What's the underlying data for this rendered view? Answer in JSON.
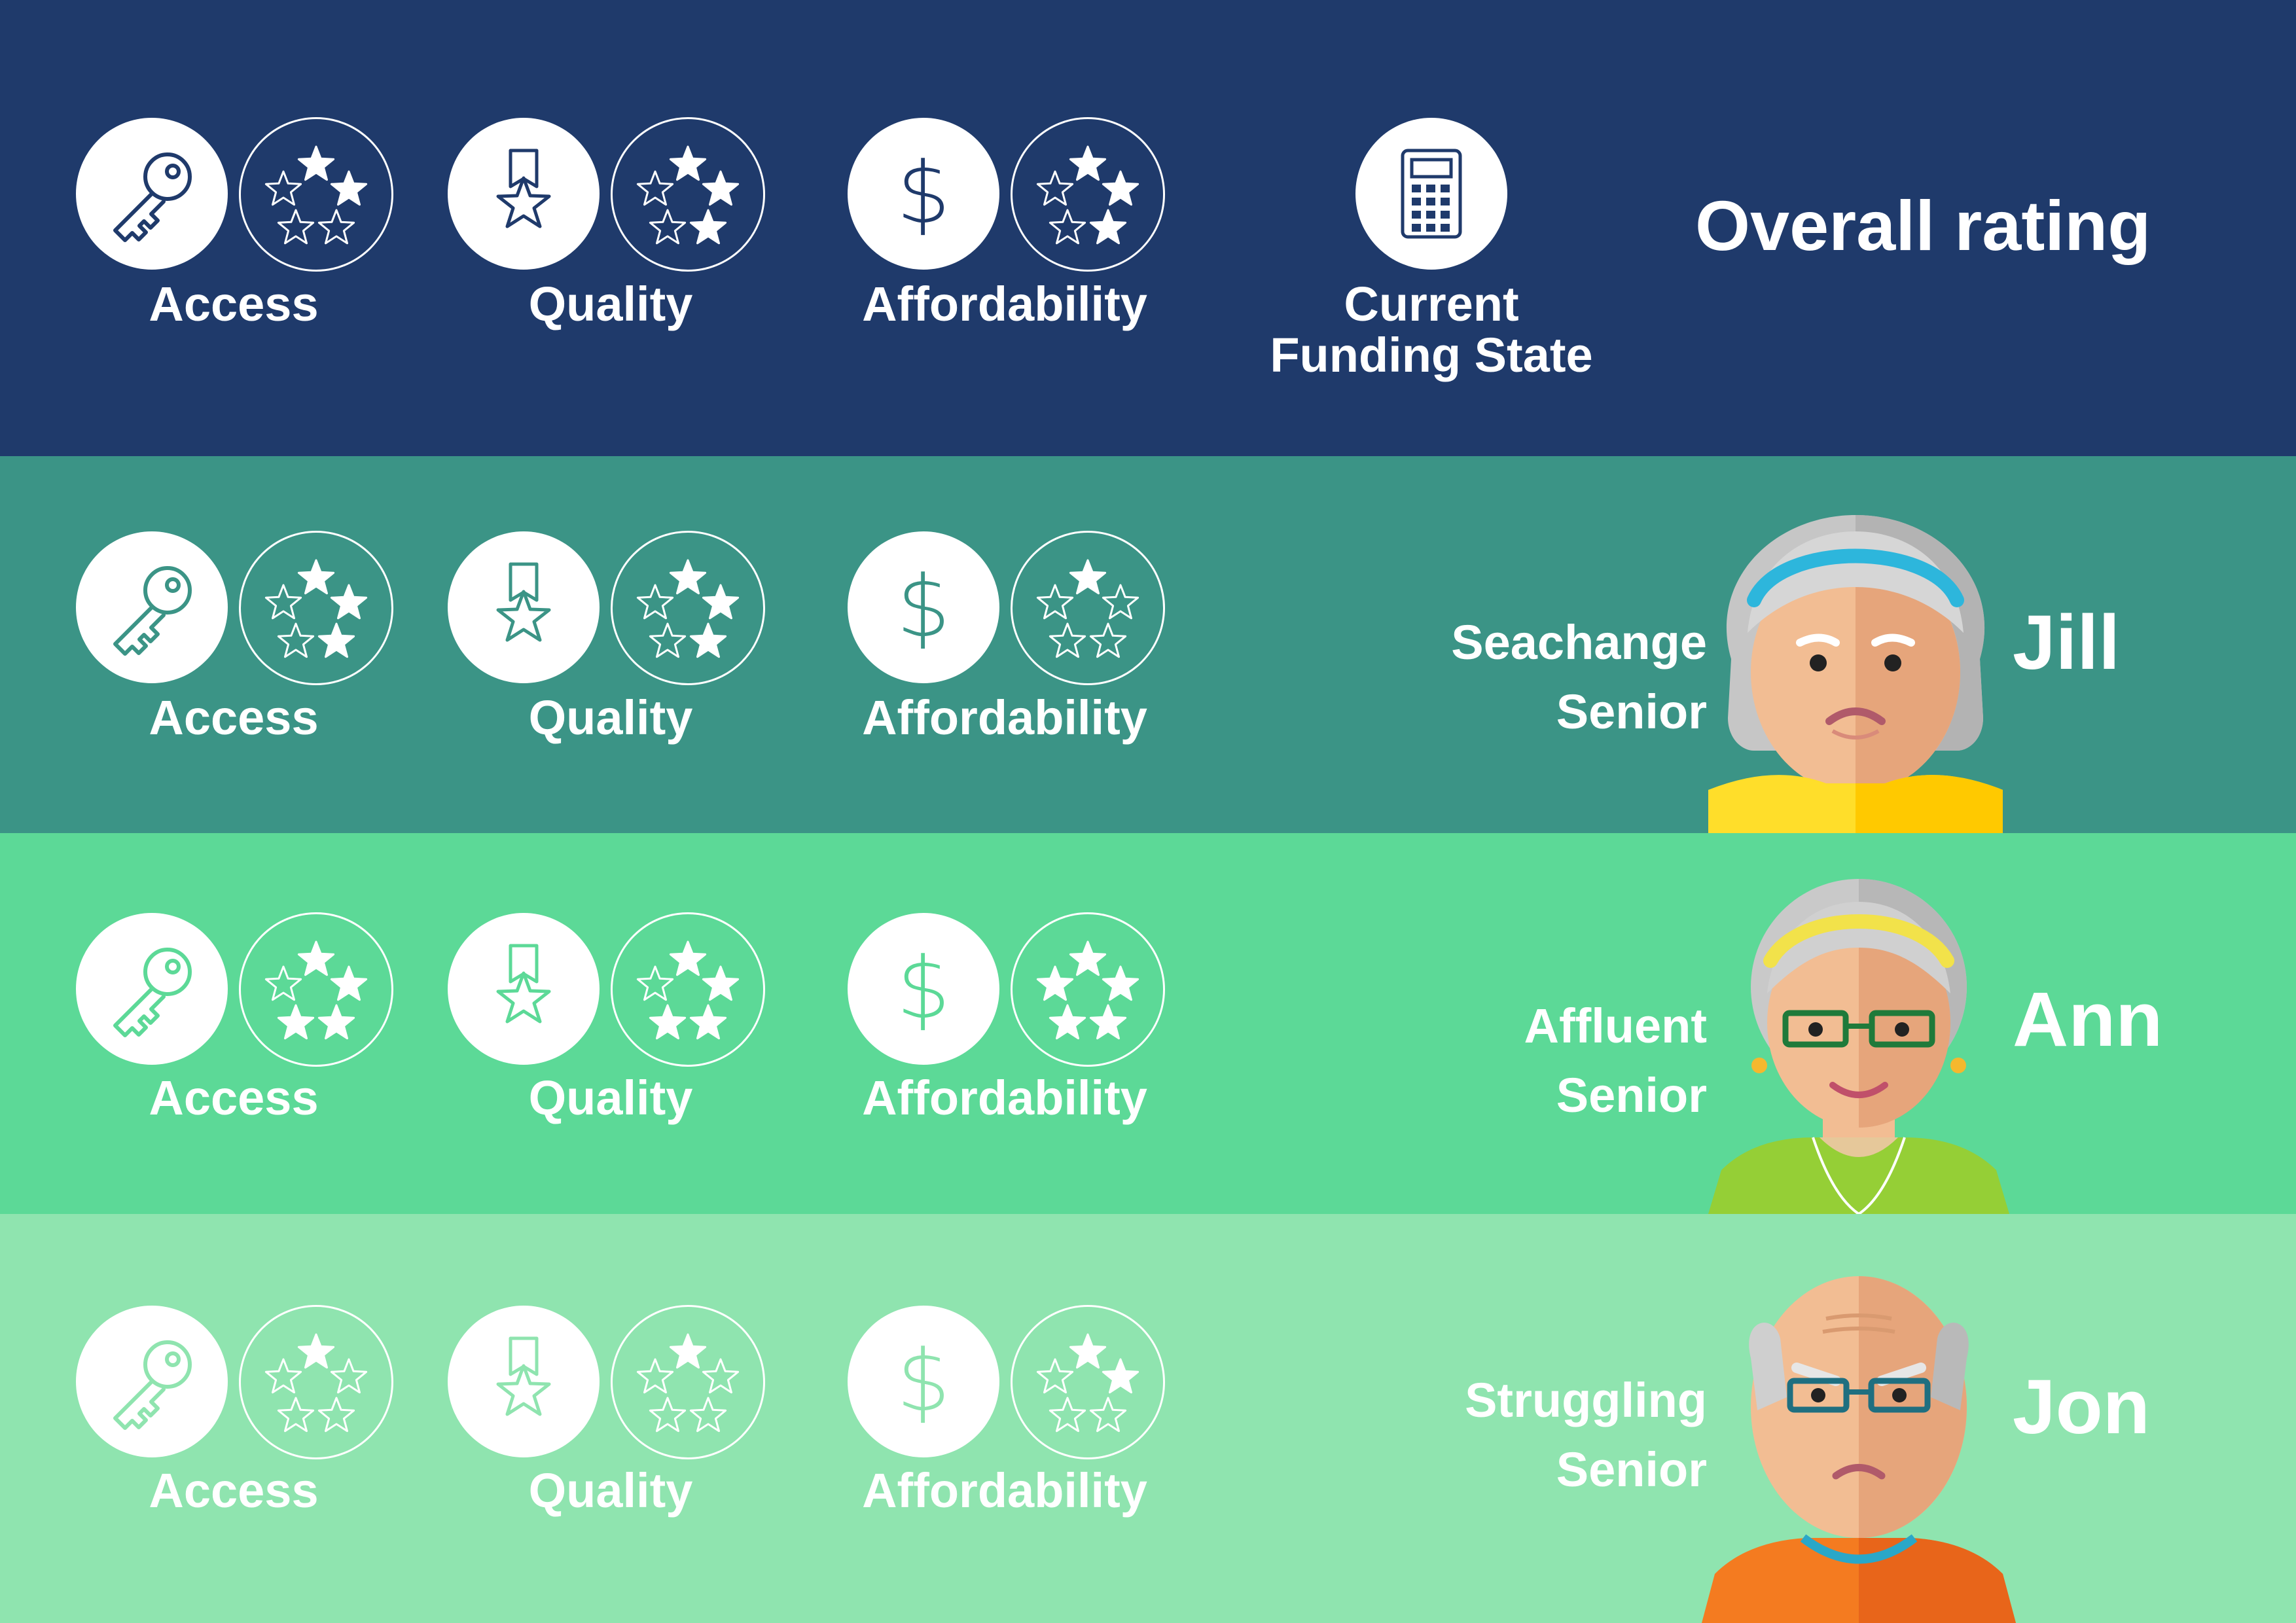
{
  "colors": {
    "header_bg": "#1f3a6b",
    "row_colors": [
      "#3b9486",
      "#5cd997",
      "#8fe4af"
    ],
    "white": "#ffffff"
  },
  "header": {
    "metrics": [
      {
        "label": "Access",
        "icon": "key-icon",
        "rating": 2
      },
      {
        "label": "Quality",
        "icon": "ribbon-star-icon",
        "rating": 3
      },
      {
        "label": "Affordability",
        "icon": "dollar-icon",
        "rating": 3
      }
    ],
    "funding": {
      "label_line1": "Current",
      "label_line2": "Funding State",
      "icon": "calculator-icon"
    },
    "overall_title": "Overall rating"
  },
  "rows": [
    {
      "persona_type_line1": "Seachange",
      "persona_type_line2": "Senior",
      "name": "Jill",
      "avatar": "elderly-woman-headband-avatar",
      "metrics": [
        {
          "label": "Access",
          "icon": "key-icon",
          "rating": 3
        },
        {
          "label": "Quality",
          "icon": "ribbon-star-icon",
          "rating": 3
        },
        {
          "label": "Affordability",
          "icon": "dollar-icon",
          "rating": 1
        }
      ]
    },
    {
      "persona_type_line1": "Affluent",
      "persona_type_line2": "Senior",
      "name": "Ann",
      "avatar": "elderly-woman-glasses-avatar",
      "metrics": [
        {
          "label": "Access",
          "icon": "key-icon",
          "rating": 4
        },
        {
          "label": "Quality",
          "icon": "ribbon-star-icon",
          "rating": 4
        },
        {
          "label": "Affordability",
          "icon": "dollar-icon",
          "rating": 5
        }
      ]
    },
    {
      "persona_type_line1": "Struggling",
      "persona_type_line2": "Senior",
      "name": "Jon",
      "avatar": "elderly-man-glasses-avatar",
      "metrics": [
        {
          "label": "Access",
          "icon": "key-icon",
          "rating": 1
        },
        {
          "label": "Quality",
          "icon": "ribbon-star-icon",
          "rating": 1
        },
        {
          "label": "Affordability",
          "icon": "dollar-icon",
          "rating": 2
        }
      ]
    }
  ]
}
